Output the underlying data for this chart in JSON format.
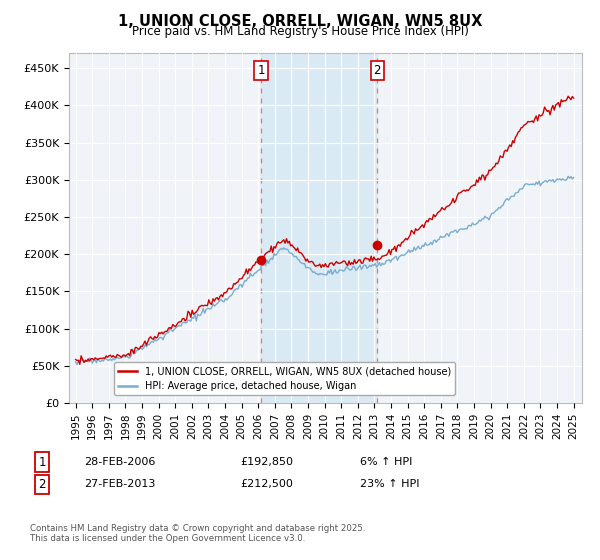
{
  "title": "1, UNION CLOSE, ORRELL, WIGAN, WN5 8UX",
  "subtitle": "Price paid vs. HM Land Registry's House Price Index (HPI)",
  "ylim": [
    0,
    470000
  ],
  "yticks": [
    0,
    50000,
    100000,
    150000,
    200000,
    250000,
    300000,
    350000,
    400000,
    450000
  ],
  "ytick_labels": [
    "£0",
    "£50K",
    "£100K",
    "£150K",
    "£200K",
    "£250K",
    "£300K",
    "£350K",
    "£400K",
    "£450K"
  ],
  "red_line_color": "#cc0000",
  "blue_line_color": "#7aadcf",
  "shaded_color": "#daeaf5",
  "vline_color": "#e87878",
  "transaction1_x": 2006.167,
  "transaction1_price": 192850,
  "transaction1_hpi_pct": "6%",
  "transaction1_date": "28-FEB-2006",
  "transaction2_x": 2013.167,
  "transaction2_price": 212500,
  "transaction2_hpi_pct": "23%",
  "transaction2_date": "27-FEB-2013",
  "legend_line1": "1, UNION CLOSE, ORRELL, WIGAN, WN5 8UX (detached house)",
  "legend_line2": "HPI: Average price, detached house, Wigan",
  "footer": "Contains HM Land Registry data © Crown copyright and database right 2025.\nThis data is licensed under the Open Government Licence v3.0.",
  "background_color": "#ffffff",
  "plot_bg_color": "#f0f4f8"
}
